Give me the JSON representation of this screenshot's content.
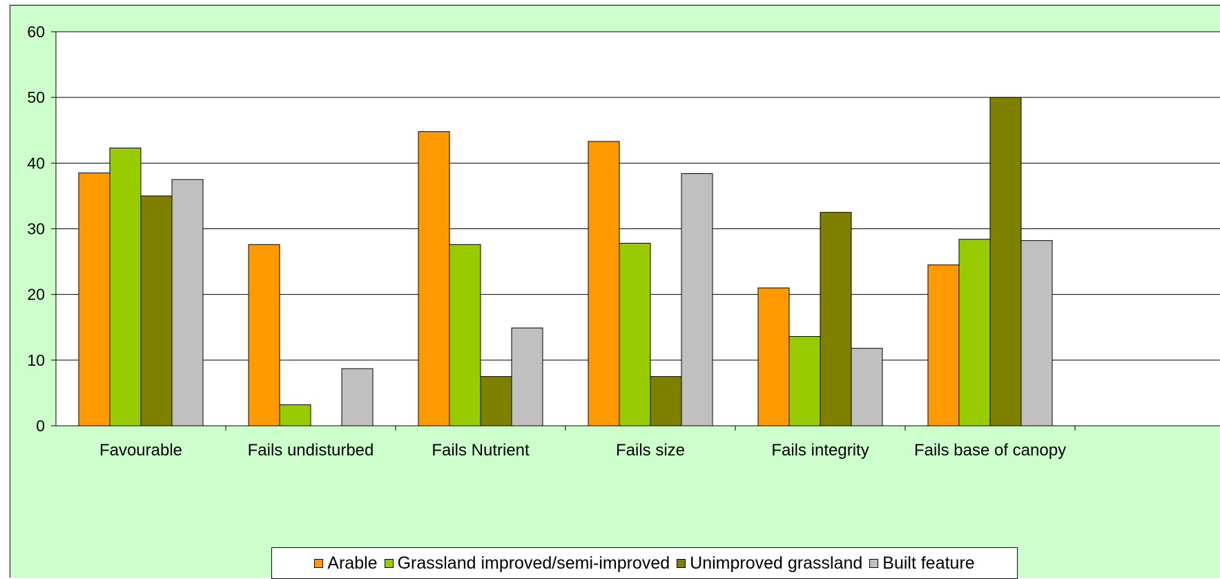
{
  "chart_data": {
    "type": "bar",
    "categories": [
      "Favourable",
      "Fails undisturbed",
      "Fails Nutrient",
      "Fails size",
      "Fails integrity",
      "Fails base of canopy"
    ],
    "series": [
      {
        "name": "Arable",
        "color": "#ff9900",
        "values": [
          38.5,
          27.6,
          44.8,
          43.3,
          21.0,
          24.5
        ]
      },
      {
        "name": "Grassland improved/semi-improved",
        "color": "#99cc00",
        "values": [
          42.3,
          3.2,
          27.6,
          27.8,
          13.6,
          28.4
        ]
      },
      {
        "name": "Unimproved grassland",
        "color": "#808000",
        "values": [
          35.0,
          0,
          7.5,
          7.5,
          32.5,
          50.0
        ]
      },
      {
        "name": "Built feature",
        "color": "#c0c0c0",
        "values": [
          37.5,
          8.7,
          14.9,
          38.4,
          11.8,
          28.2
        ]
      }
    ],
    "yticks": [
      "0",
      "10",
      "20",
      "30",
      "40",
      "50",
      "60"
    ],
    "ylim": [
      0,
      60
    ],
    "grid": true,
    "legend_position": "bottom",
    "plot_background": "#ffffff",
    "chart_background": "#ccffcc"
  }
}
